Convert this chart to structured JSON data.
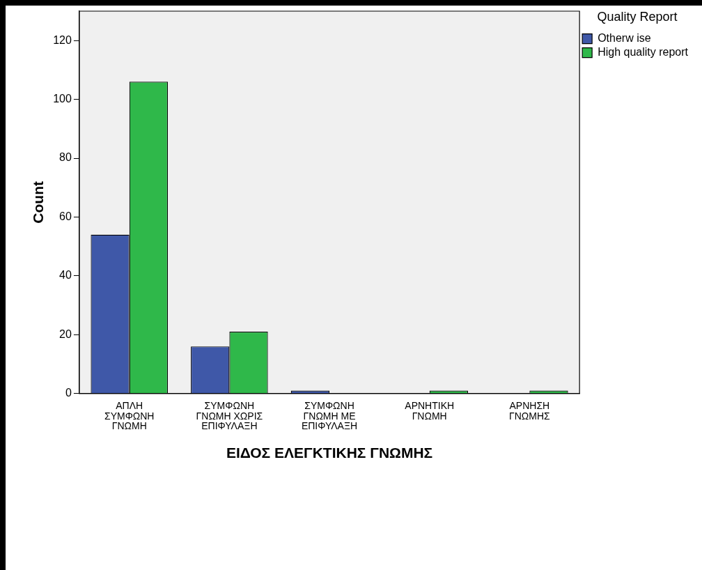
{
  "chart_data": {
    "type": "bar",
    "categories": [
      "ΑΠΛΗ ΣΥΜΦΩΝΗ ΓΝΩΜΗ",
      "ΣΥΜΦΩΝΗ ΓΝΩΜΗ ΧΩΡΙΣ ΕΠΙΦΥΛΑΞΗ",
      "ΣΥΜΦΩΝΗ ΓΝΩΜΗ ΜΕ ΕΠΙΦΥΛΑΞΗ",
      "ΑΡΝΗΤΙΚΗ ΓΝΩΜΗ",
      "ΑΡΝΗΣΗ ΓΝΩΜΗΣ"
    ],
    "series": [
      {
        "name": "Otherw ise",
        "color": "#3f58a8",
        "values": [
          54,
          16,
          1,
          0,
          0
        ]
      },
      {
        "name": "High quality report",
        "color": "#2fb84a",
        "values": [
          106,
          21,
          0,
          1,
          1
        ]
      }
    ],
    "xlabel": "ΕΙΔΟΣ ΕΛΕΓΚΤΙΚΗΣ ΓΝΩΜΗΣ",
    "ylabel": "Count",
    "legend_title": "Quality Report",
    "ylim": [
      0,
      130
    ],
    "yticks": [
      0,
      20,
      40,
      60,
      80,
      100,
      120
    ],
    "grid": false,
    "legend": "right"
  }
}
